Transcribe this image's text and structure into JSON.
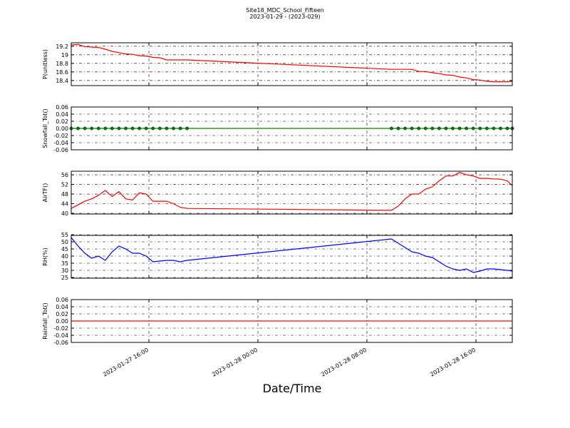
{
  "title": "Site18_MDC_School_Fifteen",
  "subtitle": "2023-01-29 - (2023-029)",
  "xlabel": "Date/Time",
  "xlim": [
    "2023-01-27 10:18",
    "2023-01-28 18:40"
  ],
  "xticks": [
    "2023-01-27 16:00",
    "2023-01-28 00:00",
    "2023-01-28 08:00",
    "2023-01-28 16:00"
  ],
  "x": [
    "2023-01-27 10:18",
    "2023-01-27 10:48",
    "2023-01-27 11:18",
    "2023-01-27 11:48",
    "2023-01-27 12:18",
    "2023-01-27 12:48",
    "2023-01-27 13:18",
    "2023-01-27 13:48",
    "2023-01-27 14:18",
    "2023-01-27 14:48",
    "2023-01-27 15:18",
    "2023-01-27 15:48",
    "2023-01-27 16:18",
    "2023-01-27 16:48",
    "2023-01-27 17:18",
    "2023-01-27 17:48",
    "2023-01-27 18:18",
    "2023-01-27 18:48",
    "2023-01-28 09:48",
    "2023-01-28 10:18",
    "2023-01-28 10:48",
    "2023-01-28 11:18",
    "2023-01-28 11:48",
    "2023-01-28 12:18",
    "2023-01-28 12:48",
    "2023-01-28 13:18",
    "2023-01-28 13:48",
    "2023-01-28 14:18",
    "2023-01-28 14:48",
    "2023-01-28 15:18",
    "2023-01-28 15:48",
    "2023-01-28 16:18",
    "2023-01-28 16:48",
    "2023-01-28 17:18",
    "2023-01-28 17:48",
    "2023-01-28 18:18",
    "2023-01-28 18:40"
  ],
  "chart_data": [
    {
      "type": "line",
      "ylabel": "P(unitless)",
      "ylim": [
        18.28,
        19.28
      ],
      "yticks": [
        18.4,
        18.6,
        18.8,
        19.0,
        19.2
      ],
      "grid": true,
      "series": [
        {
          "color": "#ff0000",
          "markers": false,
          "values": [
            19.23,
            19.24,
            19.19,
            19.18,
            19.17,
            19.13,
            19.08,
            19.05,
            19.02,
            19.01,
            18.98,
            18.97,
            18.94,
            18.93,
            18.88,
            18.88,
            18.88,
            18.88,
            18.66,
            18.66,
            18.66,
            18.66,
            18.61,
            18.61,
            18.58,
            18.56,
            18.53,
            18.52,
            18.48,
            18.46,
            18.42,
            18.41,
            18.38,
            18.37,
            18.37,
            18.37,
            18.38
          ]
        }
      ]
    },
    {
      "type": "line",
      "ylabel": "Snowfall_Tot()",
      "ylim": [
        -0.06,
        0.06
      ],
      "yticks": [
        -0.06,
        -0.04,
        -0.02,
        {
          "value": 0,
          "label": "0.00"
        },
        0.02,
        0.04,
        0.06
      ],
      "grid": true,
      "series": [
        {
          "color": "#008000",
          "markers": true,
          "values": [
            0,
            0,
            0,
            0,
            0,
            0,
            0,
            0,
            0,
            0,
            0,
            0,
            0,
            0,
            0,
            0,
            0,
            0,
            0,
            0,
            0,
            0,
            0,
            0,
            0,
            0,
            0,
            0,
            0,
            0,
            0,
            0,
            0,
            0,
            0,
            0,
            0
          ]
        }
      ]
    },
    {
      "type": "line",
      "ylabel": "AirTF()",
      "ylim": [
        39.7,
        57.5
      ],
      "yticks": [
        40,
        44,
        48,
        52,
        56
      ],
      "grid": true,
      "series": [
        {
          "color": "#ff0000",
          "markers": false,
          "values": [
            42,
            43.5,
            45,
            46,
            47.5,
            49.5,
            47,
            49,
            46,
            45.5,
            48.5,
            48,
            45,
            45,
            45,
            44,
            42.5,
            42,
            41.2,
            43,
            46,
            48,
            48,
            50,
            51,
            53.5,
            55.5,
            55.5,
            57,
            56,
            55.5,
            54.5,
            54.5,
            54.3,
            54.2,
            53.5,
            51.5
          ]
        }
      ]
    },
    {
      "type": "line",
      "ylabel": "RH(%)",
      "ylim": [
        24.5,
        54.5
      ],
      "yticks": [
        25,
        30,
        35,
        40,
        45,
        50,
        55
      ],
      "grid": true,
      "series": [
        {
          "color": "#0000ff",
          "markers": false,
          "values": [
            53,
            47,
            42,
            38.5,
            40,
            37,
            43,
            47,
            45,
            42,
            42,
            40,
            36,
            36.5,
            37,
            37,
            36,
            37,
            52,
            49,
            46,
            43,
            42,
            40,
            39,
            36,
            33,
            31,
            30,
            31,
            28.5,
            29.5,
            31,
            31,
            30.5,
            30,
            29.5
          ]
        }
      ]
    },
    {
      "type": "line",
      "ylabel": "Rainfall_Tot()",
      "ylim": [
        -0.06,
        0.06
      ],
      "yticks": [
        -0.06,
        -0.04,
        -0.02,
        {
          "value": 0,
          "label": "0.00"
        },
        0.02,
        0.04,
        0.06
      ],
      "grid": true,
      "series": [
        {
          "color": "#ff0000",
          "markers": false,
          "values": [
            0,
            0,
            0,
            0,
            0,
            0,
            0,
            0,
            0,
            0,
            0,
            0,
            0,
            0,
            0,
            0,
            0,
            0,
            0,
            0,
            0,
            0,
            0,
            0,
            0,
            0,
            0,
            0,
            0,
            0,
            0,
            0,
            0,
            0,
            0,
            0,
            0
          ]
        }
      ]
    }
  ]
}
